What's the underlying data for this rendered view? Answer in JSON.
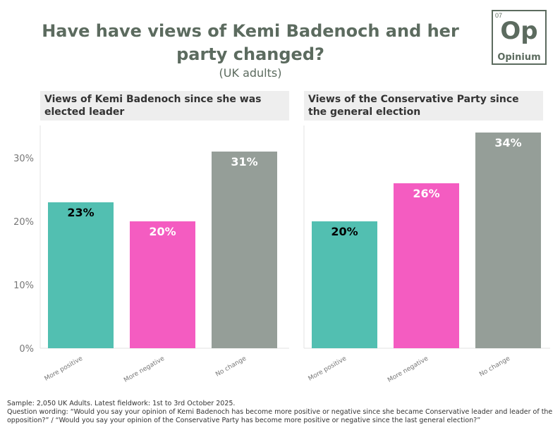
{
  "title": "Have have views of Kemi Badenoch and her party changed?",
  "subtitle": "(UK adults)",
  "logo": {
    "number": "07",
    "symbol": "Op",
    "word": "Opinium"
  },
  "footer": {
    "sample": "Sample: 2,050 UK Adults. Latest fieldwork: 1st to 3rd October 2025.",
    "question": "Question wording: “Would you say your opinion of Kemi Badenoch has become more positive or negative since she became Conservative leader and leader of the opposition?” / “Would you say your opinion of the Conservative Party has become more positive or negative since the last general election?”"
  },
  "colors": {
    "positive": "#52bfb1",
    "negative": "#f45cc1",
    "no_change": "#959e98"
  },
  "chart_data": [
    {
      "type": "bar",
      "title": "Views of Kemi Badenoch since she was elected leader",
      "categories": [
        "More positive",
        "More negative",
        "No change"
      ],
      "values": [
        23,
        20,
        31
      ],
      "data_labels": [
        "23%",
        "20%",
        "31%"
      ],
      "yticks": [
        "0%",
        "10%",
        "20%",
        "30%"
      ],
      "ylim": [
        0,
        35
      ],
      "grid": false
    },
    {
      "type": "bar",
      "title": "Views of the Conservative Party since the general election",
      "categories": [
        "More positive",
        "More negative",
        "No change"
      ],
      "values": [
        20,
        26,
        34
      ],
      "data_labels": [
        "20%",
        "26%",
        "34%"
      ],
      "yticks": [],
      "ylim": [
        0,
        35
      ],
      "grid": false
    }
  ]
}
